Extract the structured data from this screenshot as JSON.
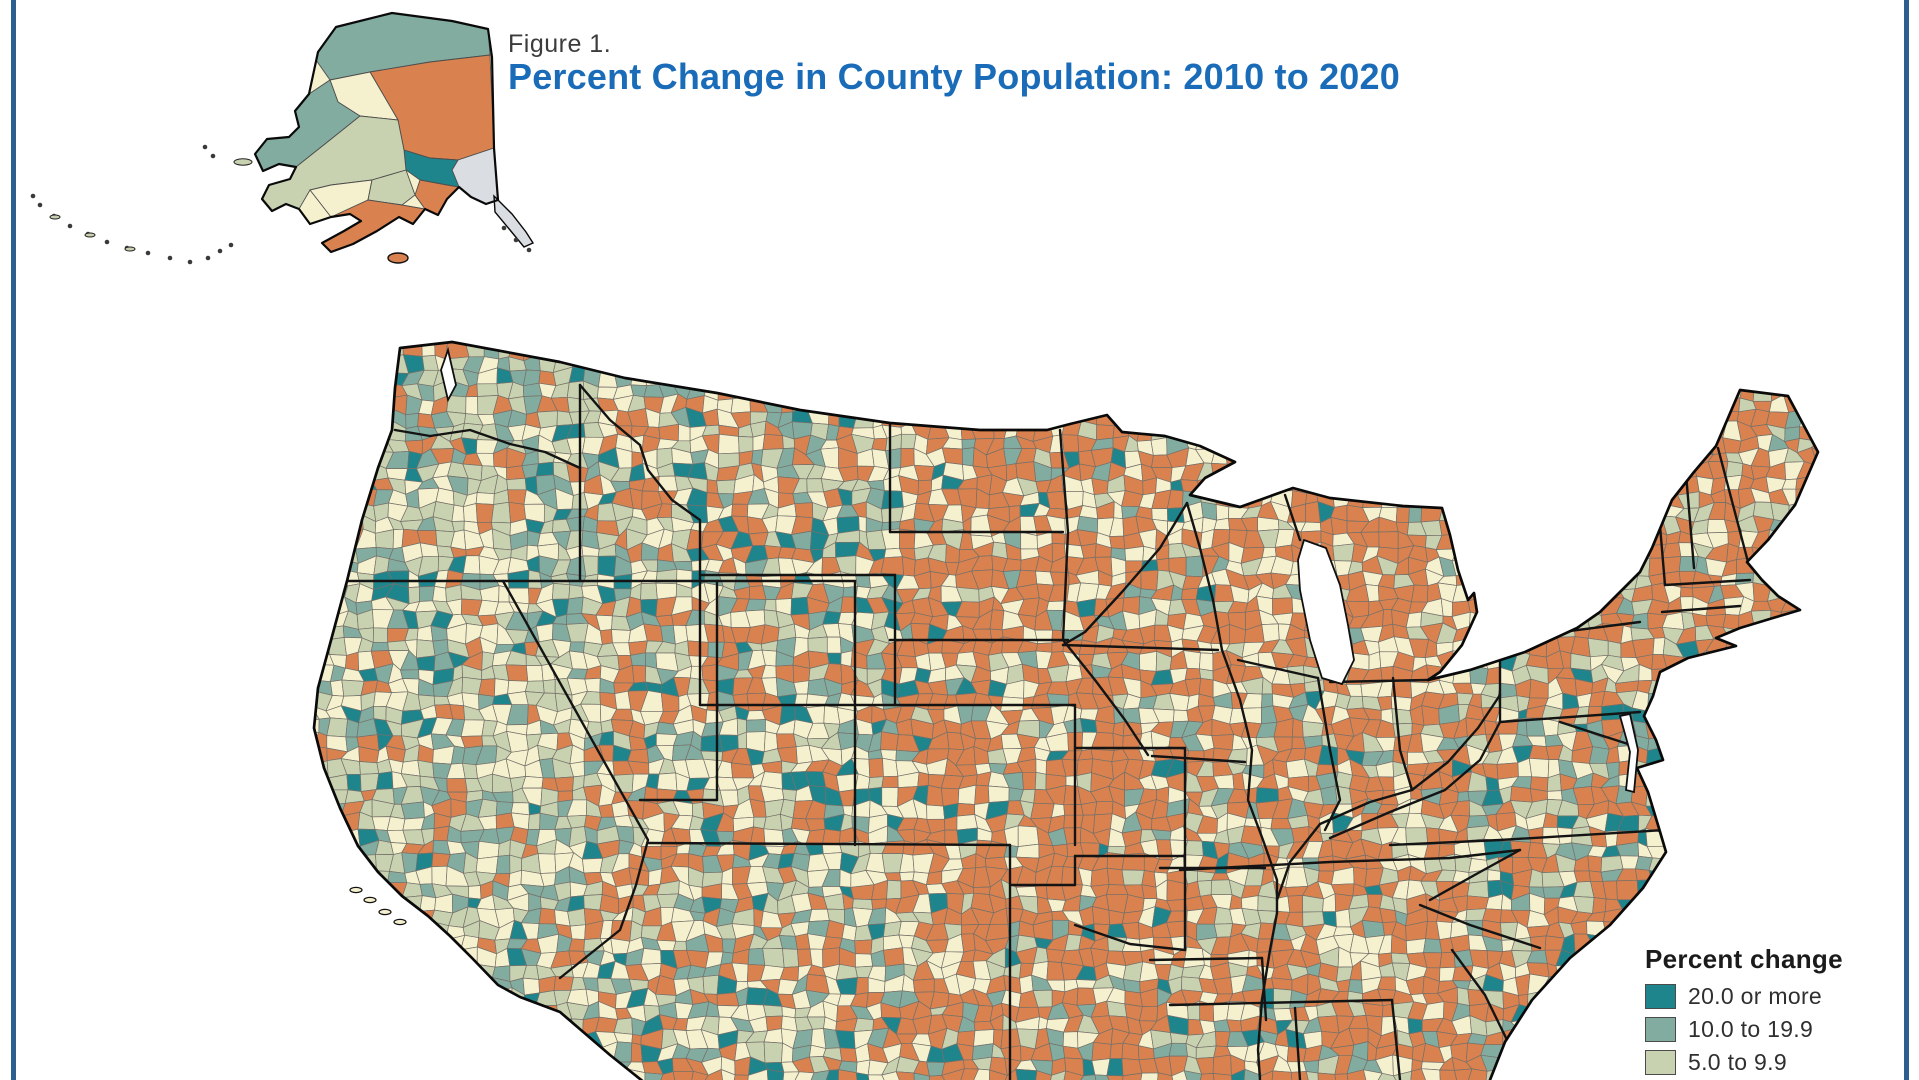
{
  "figure": {
    "label": "Figure 1.",
    "title": "Percent Change in County Population: 2010 to 2020",
    "title_color": "#1A6CB8",
    "label_color": "#3C3C3C"
  },
  "frame": {
    "border_color": "#2E5E8E"
  },
  "map": {
    "description": "Choropleth map of percent change in county population 2010 to 2020, contiguous United States with Alaska inset",
    "water_color": "#FFFFFF",
    "county_line_color": "#757069",
    "state_line_color": "#141414",
    "outline_color": "#0a0a0a",
    "palette": {
      "orange": "#D9824F",
      "cream": "#F5F1CF",
      "sage": "#C8D2B0",
      "teal_med": "#83ACA0",
      "teal_dark": "#1E858C",
      "gray": "#DADDE2"
    }
  },
  "legend": {
    "title": "Percent change",
    "items": [
      {
        "label": "20.0 or more",
        "color": "#1E858C"
      },
      {
        "label": "10.0 to 19.9",
        "color": "#83ACA0"
      },
      {
        "label": "5.0 to 9.9",
        "color": "#C8D2B0"
      },
      {
        "label": "",
        "color": "#F5F1CF"
      }
    ]
  }
}
